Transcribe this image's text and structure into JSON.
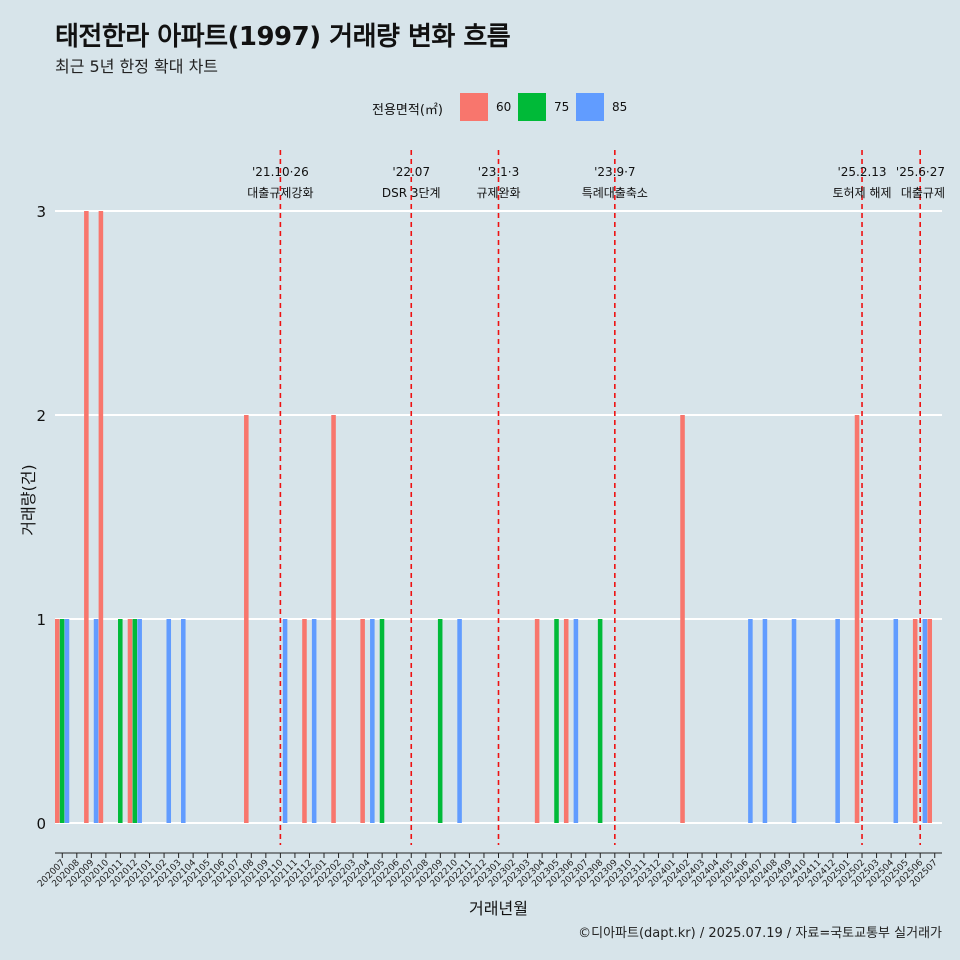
{
  "title": "태전한라 아파트(1997) 거래량 변화 흐름",
  "subtitle": "최근 5년 한정 확대 차트",
  "caption": "©디아파트(dapt.kr) / 2025.07.19 / 자료=국토교통부 실거래가",
  "legend": {
    "title": "전용면적(㎡)",
    "items": [
      {
        "label": "60",
        "color": "#f8766d"
      },
      {
        "label": "75",
        "color": "#00ba38"
      },
      {
        "label": "85",
        "color": "#619cff"
      }
    ]
  },
  "chart_data": {
    "type": "bar",
    "xlabel": "거래년월",
    "ylabel": "거래량(건)",
    "ylim": [
      0,
      3
    ],
    "y_ticks": [
      "0",
      "1",
      "2",
      "3"
    ],
    "grid": true,
    "legend_position": "top",
    "categories": [
      "202007",
      "202008",
      "202009",
      "202010",
      "202011",
      "202012",
      "202101",
      "202102",
      "202103",
      "202104",
      "202105",
      "202106",
      "202107",
      "202108",
      "202109",
      "202110",
      "202111",
      "202112",
      "202201",
      "202202",
      "202203",
      "202204",
      "202205",
      "202206",
      "202207",
      "202208",
      "202209",
      "202210",
      "202211",
      "202212",
      "202301",
      "202302",
      "202303",
      "202304",
      "202305",
      "202306",
      "202307",
      "202308",
      "202309",
      "202310",
      "202311",
      "202312",
      "202401",
      "202402",
      "202403",
      "202404",
      "202405",
      "202406",
      "202407",
      "202408",
      "202409",
      "202410",
      "202411",
      "202412",
      "202501",
      "202502",
      "202503",
      "202504",
      "202505",
      "202506",
      "202507"
    ],
    "series": [
      {
        "name": "60",
        "color": "#f8766d",
        "values": [
          1,
          0,
          3,
          3,
          0,
          1,
          0,
          0,
          0,
          0,
          0,
          0,
          0,
          2,
          0,
          0,
          0,
          1,
          0,
          2,
          0,
          1,
          0,
          0,
          0,
          0,
          0,
          0,
          0,
          0,
          0,
          0,
          0,
          1,
          0,
          1,
          0,
          0,
          0,
          0,
          0,
          0,
          0,
          2,
          0,
          0,
          0,
          0,
          0,
          0,
          0,
          0,
          0,
          0,
          0,
          2,
          0,
          0,
          0,
          1,
          1
        ]
      },
      {
        "name": "75",
        "color": "#00ba38",
        "values": [
          1,
          0,
          0,
          0,
          1,
          1,
          0,
          0,
          0,
          0,
          0,
          0,
          0,
          0,
          0,
          0,
          0,
          0,
          0,
          0,
          0,
          0,
          1,
          0,
          0,
          0,
          1,
          0,
          0,
          0,
          0,
          0,
          0,
          0,
          1,
          0,
          0,
          1,
          0,
          0,
          0,
          0,
          0,
          0,
          0,
          0,
          0,
          0,
          0,
          0,
          0,
          0,
          0,
          0,
          0,
          0,
          0,
          0,
          0,
          0,
          0
        ]
      },
      {
        "name": "85",
        "color": "#619cff",
        "values": [
          1,
          0,
          1,
          0,
          0,
          1,
          0,
          1,
          1,
          0,
          0,
          0,
          0,
          0,
          0,
          1,
          0,
          1,
          0,
          0,
          0,
          1,
          0,
          0,
          0,
          0,
          0,
          1,
          0,
          0,
          0,
          0,
          0,
          0,
          0,
          1,
          0,
          0,
          0,
          0,
          0,
          0,
          0,
          0,
          0,
          0,
          0,
          1,
          1,
          0,
          1,
          0,
          0,
          1,
          0,
          0,
          0,
          1,
          0,
          1,
          0
        ]
      }
    ],
    "annotations": [
      {
        "x": "202110",
        "date": "'21.10·26",
        "label": "대출규제강화"
      },
      {
        "x": "202207",
        "date": "'22.07",
        "label": "DSR 3단계"
      },
      {
        "x": "202301",
        "date": "'23.1·3",
        "label": "규제완화"
      },
      {
        "x": "202309",
        "date": "'23.9·7",
        "label": "특례대출축소"
      },
      {
        "x": "202502",
        "date": "'25.2.13",
        "label": "토허제 해제"
      },
      {
        "x": "202506",
        "date": "'25.6·27",
        "label": "대출규제"
      }
    ]
  }
}
